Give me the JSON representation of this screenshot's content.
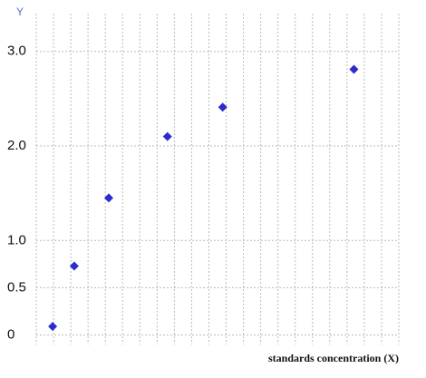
{
  "chart_data": {
    "type": "scatter",
    "y_label": "Y",
    "x_label": "standards concentration (X)",
    "x": [
      0.95,
      2.2,
      4.2,
      7.6,
      10.8,
      18.4
    ],
    "values": [
      0.09,
      0.73,
      1.45,
      2.1,
      2.41,
      2.81
    ],
    "color": "#2b2bd0",
    "xlim": [
      0,
      21
    ],
    "xticks": [
      0,
      1,
      2,
      3,
      4,
      5,
      6,
      7,
      8,
      9,
      10,
      11,
      12,
      13,
      14,
      15,
      16,
      17,
      18,
      19,
      20,
      21
    ],
    "ylim": [
      -0.1,
      3.4
    ],
    "yticks": [
      0,
      0.5,
      {
        "value": 1,
        "label": "1.0"
      },
      {
        "value": 2,
        "label": "2.0"
      },
      {
        "value": 3,
        "label": "3.0"
      }
    ],
    "grid": true
  }
}
